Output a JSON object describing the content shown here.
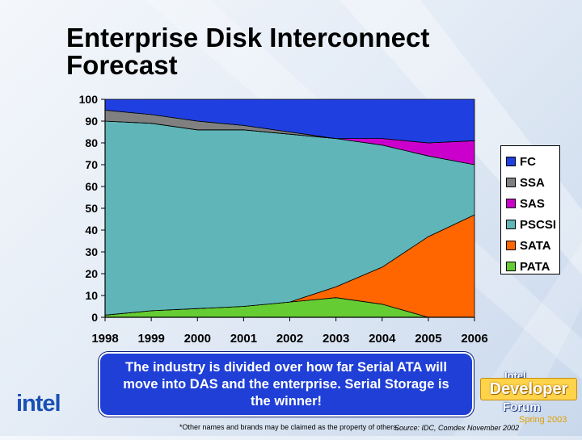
{
  "slide": {
    "title_line1": "Enterprise Disk Interconnect",
    "title_line2": "Forecast",
    "callout_text": "The industry is divided over how far Serial ATA will move into DAS and the enterprise.  Serial Storage is the winner!",
    "footnote": "*Other names and brands may be claimed as the property of others.",
    "source": "Source:  IDC, Comdex November 2002",
    "intel_logo_text": "intel",
    "idf_logo": {
      "intel": "Intel",
      "developer": "Developer",
      "forum": "Forum",
      "season": "Spring 2003"
    }
  },
  "chart_data": {
    "type": "area",
    "stacked": true,
    "x": [
      "1998",
      "1999",
      "2000",
      "2001",
      "2002",
      "2003",
      "2004",
      "2005",
      "2006"
    ],
    "ylim": [
      0,
      100
    ],
    "yticks": [
      0,
      10,
      20,
      30,
      40,
      50,
      60,
      70,
      80,
      90,
      100
    ],
    "legend_position": "right",
    "series": [
      {
        "name": "PATA",
        "color": "#66cc33",
        "values": [
          1,
          3,
          4,
          5,
          7,
          9,
          6,
          0,
          0
        ]
      },
      {
        "name": "SATA",
        "color": "#ff6600",
        "values": [
          0,
          0,
          0,
          0,
          0,
          5,
          17,
          37,
          47
        ]
      },
      {
        "name": "PSCSI",
        "color": "#5fb5b8",
        "values": [
          89,
          86,
          82,
          81,
          77,
          68,
          56,
          37,
          23
        ]
      },
      {
        "name": "SAS",
        "color": "#cc00cc",
        "values": [
          0,
          0,
          0,
          0,
          0,
          0,
          3,
          6,
          11
        ]
      },
      {
        "name": "SSA",
        "color": "#808080",
        "values": [
          5,
          4,
          4,
          2,
          1,
          0,
          0,
          0,
          0
        ]
      },
      {
        "name": "FC",
        "color": "#1f3fe0",
        "values": [
          5,
          7,
          10,
          12,
          15,
          18,
          18,
          20,
          19
        ]
      }
    ],
    "legend_order": [
      "FC",
      "SSA",
      "SAS",
      "PSCSI",
      "SATA",
      "PATA"
    ]
  }
}
